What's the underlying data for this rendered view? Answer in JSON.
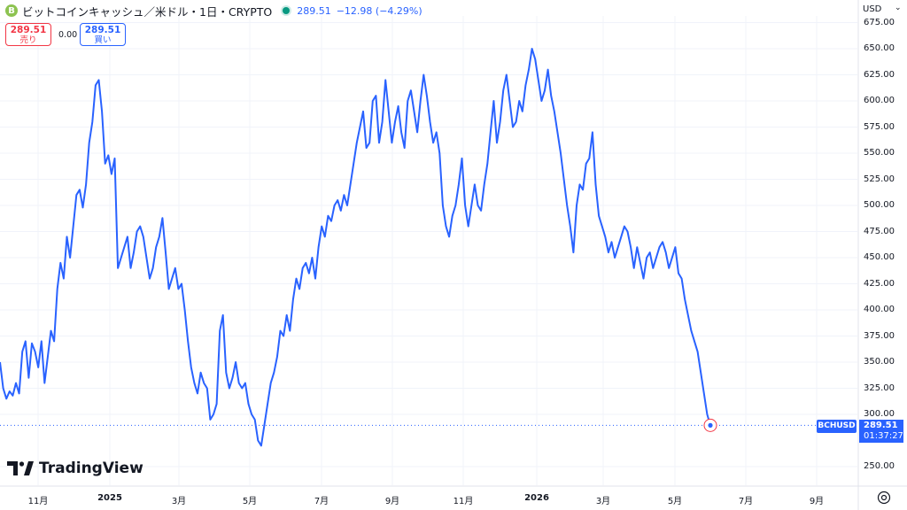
{
  "header": {
    "coin_icon_letter": "B",
    "title": "ビットコインキャッシュ／米ドル・1日・CRYPTO",
    "last_price": "289.51",
    "change": "−12.98 (−4.29%)"
  },
  "trade": {
    "sell_price": "289.51",
    "sell_label": "売り",
    "spread": "0.00",
    "buy_price": "289.51",
    "buy_label": "買い"
  },
  "price_axis": {
    "currency": "USD",
    "labels": [
      "675.00",
      "650.00",
      "625.00",
      "600.00",
      "575.00",
      "550.00",
      "525.00",
      "500.00",
      "475.00",
      "450.00",
      "425.00",
      "400.00",
      "375.00",
      "350.00",
      "325.00",
      "300.00",
      "250.00"
    ]
  },
  "time_axis": {
    "labels": [
      "11月",
      "2025",
      "3月",
      "5月",
      "7月",
      "9月",
      "11月",
      "2026",
      "3月",
      "5月",
      "7月",
      "9月"
    ],
    "bold": [
      "2025",
      "2026"
    ]
  },
  "current": {
    "symbol": "BCHUSD",
    "price": "289.51",
    "countdown": "01:37:27"
  },
  "branding": {
    "logo_text": "TradingView"
  },
  "icons": {
    "coin": "bitcoin-cash-icon",
    "settings": "settings-icon",
    "logo": "tradingview-logo-icon"
  },
  "colors": {
    "line": "#2962ff",
    "sell": "#f23645",
    "buy": "#2962ff",
    "status": "#089981",
    "grid": "#f0f3fa"
  },
  "chart_data": {
    "type": "line",
    "series": [
      {
        "values": [
          350,
          325,
          315,
          322,
          318,
          330,
          320,
          360,
          370,
          335,
          368,
          360,
          345,
          370,
          330,
          355,
          380,
          370,
          420,
          445,
          430,
          470,
          450,
          480,
          510,
          515,
          498,
          520,
          560,
          580,
          615,
          620,
          590,
          540,
          548,
          530,
          545,
          440,
          450,
          460,
          470,
          440,
          455,
          475,
          480,
          470,
          450,
          430,
          440,
          460,
          470,
          488,
          455,
          420,
          430,
          440,
          420,
          425,
          400,
          370,
          345,
          330,
          320,
          340,
          330,
          325,
          295,
          300,
          310,
          380,
          395,
          340,
          325,
          335,
          350,
          330,
          325,
          330,
          310,
          300,
          295,
          275,
          270,
          290,
          310,
          330,
          340,
          355,
          380,
          375,
          395,
          380,
          410,
          430,
          420,
          440,
          445,
          435,
          450,
          430,
          460,
          480,
          470,
          490,
          485,
          500,
          505,
          495,
          510,
          500,
          520,
          540,
          560,
          575,
          590,
          555,
          560,
          600,
          605,
          560,
          580,
          620,
          590,
          560,
          580,
          595,
          570,
          555,
          600,
          610,
          590,
          570,
          600,
          625,
          605,
          580,
          560,
          570,
          550,
          500,
          480,
          470,
          490,
          500,
          520,
          545,
          500,
          480,
          500,
          520,
          500,
          495,
          520,
          540,
          570,
          600,
          560,
          580,
          610,
          625,
          600,
          575,
          580,
          600,
          590,
          615,
          630,
          650,
          640,
          620,
          600,
          610,
          630,
          605,
          590,
          570,
          550,
          525,
          500,
          480,
          455,
          500,
          520,
          515,
          540,
          545,
          570,
          520,
          490,
          480,
          470,
          455,
          465,
          450,
          460,
          470,
          480,
          475,
          460,
          440,
          460,
          445,
          430,
          450,
          455,
          440,
          450,
          460,
          465,
          455,
          440,
          450,
          460,
          435,
          430,
          410,
          395,
          380,
          370,
          360,
          340,
          320,
          300,
          289.51
        ]
      }
    ],
    "x_ticks": [
      "11月",
      "2025",
      "3月",
      "5月",
      "7月",
      "9月",
      "11月",
      "2026",
      "3月",
      "5月",
      "7月",
      "9月"
    ],
    "ylim": [
      240,
      680
    ],
    "y_ticks": [
      250,
      300,
      325,
      350,
      375,
      400,
      425,
      450,
      475,
      500,
      525,
      550,
      575,
      600,
      625,
      650,
      675
    ],
    "grid": true,
    "last_value": 289.51
  }
}
